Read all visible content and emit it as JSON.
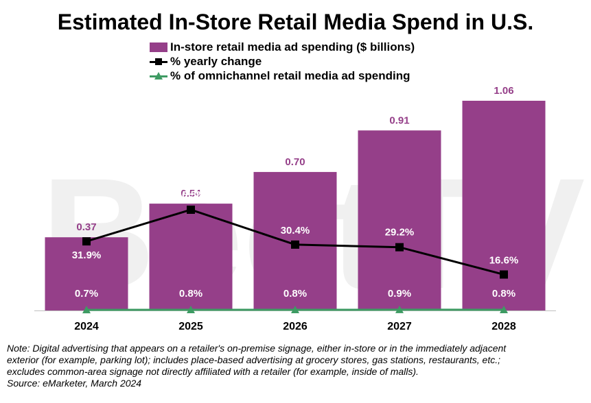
{
  "title": "Estimated In-Store Retail Media Spend in U.S.",
  "watermark": "BeetTV",
  "legend": [
    {
      "label": "In-store retail media ad spending ($ billions)",
      "kind": "bar",
      "color": "#953F89"
    },
    {
      "label": "% yearly change",
      "kind": "line-square",
      "color": "#000000"
    },
    {
      "label": "% of omnichannel retail media ad spending",
      "kind": "line-triangle",
      "color": "#3E9B63"
    }
  ],
  "note_lines": [
    "Note: Digital advertising that appears on a retailer's on-premise signage, either in-store or in the immediately adjacent",
    "exterior (for example, parking lot); includes place-based advertising at grocery stores, gas stations, restaurants, etc.;",
    "excludes common-area signage not directly affiliated with  a retailer (for example, inside of malls).",
    "Source: eMarketer, March 2024"
  ],
  "chart_data": {
    "type": "bar",
    "title": "Estimated In-Store Retail Media Spend in U.S.",
    "categories": [
      "2024",
      "2025",
      "2026",
      "2027",
      "2028"
    ],
    "series": [
      {
        "name": "In-store retail media ad spending ($ billions)",
        "type": "bar",
        "values": [
          0.37,
          0.54,
          0.7,
          0.91,
          1.06
        ],
        "labels": [
          "0.37",
          "0.54",
          "0.70",
          "0.91",
          "1.06"
        ],
        "color": "#953F89"
      },
      {
        "name": "% yearly change",
        "type": "line",
        "values": [
          31.9,
          46.5,
          30.4,
          29.2,
          16.6
        ],
        "labels": [
          "31.9%",
          "46.5%",
          "30.4%",
          "29.2%",
          "16.6%"
        ],
        "color": "#000000"
      },
      {
        "name": "% of omnichannel retail media ad spending",
        "type": "line",
        "values": [
          0.7,
          0.8,
          0.8,
          0.9,
          0.8
        ],
        "labels": [
          "0.7%",
          "0.8%",
          "0.8%",
          "0.9%",
          "0.8%"
        ],
        "color": "#3E9B63"
      }
    ],
    "ylim_bar": [
      0,
      1.06
    ],
    "ylim_pct": [
      0,
      50
    ],
    "grid": false,
    "legend_position": "top"
  }
}
